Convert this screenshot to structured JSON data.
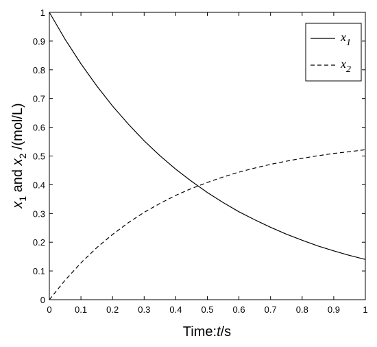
{
  "chart_data": {
    "type": "line",
    "xlabel_prefix": "Time:",
    "xlabel_var": "t",
    "xlabel_unit": "/s",
    "ylabel_parts": {
      "v1": "x",
      "s1": "1",
      "mid": " and ",
      "v2": "x",
      "s2": "2",
      "unit": " /(mol/L)"
    },
    "xlim": [
      0,
      1
    ],
    "ylim": [
      0,
      1
    ],
    "xticks": [
      "0",
      "0.1",
      "0.2",
      "0.3",
      "0.4",
      "0.5",
      "0.6",
      "0.7",
      "0.8",
      "0.9",
      "1"
    ],
    "yticks": [
      "0",
      "0.1",
      "0.2",
      "0.3",
      "0.4",
      "0.5",
      "0.6",
      "0.7",
      "0.8",
      "0.9",
      "1"
    ],
    "grid": false,
    "legend_position": "top-right",
    "x": [
      0,
      0.05,
      0.1,
      0.15,
      0.2,
      0.25,
      0.3,
      0.35,
      0.4,
      0.45,
      0.5,
      0.55,
      0.6,
      0.65,
      0.7,
      0.75,
      0.8,
      0.85,
      0.9,
      0.95,
      1
    ],
    "series": [
      {
        "name_var": "x",
        "name_sub": "1",
        "style": "solid",
        "values": [
          1.0,
          0.906,
          0.821,
          0.744,
          0.674,
          0.611,
          0.553,
          0.501,
          0.454,
          0.412,
          0.373,
          0.338,
          0.306,
          0.278,
          0.252,
          0.228,
          0.207,
          0.187,
          0.17,
          0.154,
          0.14
        ]
      },
      {
        "name_var": "x",
        "name_sub": "2",
        "style": "dashed",
        "values": [
          0.0,
          0.068,
          0.128,
          0.181,
          0.227,
          0.268,
          0.304,
          0.335,
          0.363,
          0.387,
          0.408,
          0.427,
          0.444,
          0.458,
          0.471,
          0.482,
          0.492,
          0.501,
          0.509,
          0.515,
          0.522
        ]
      }
    ]
  }
}
